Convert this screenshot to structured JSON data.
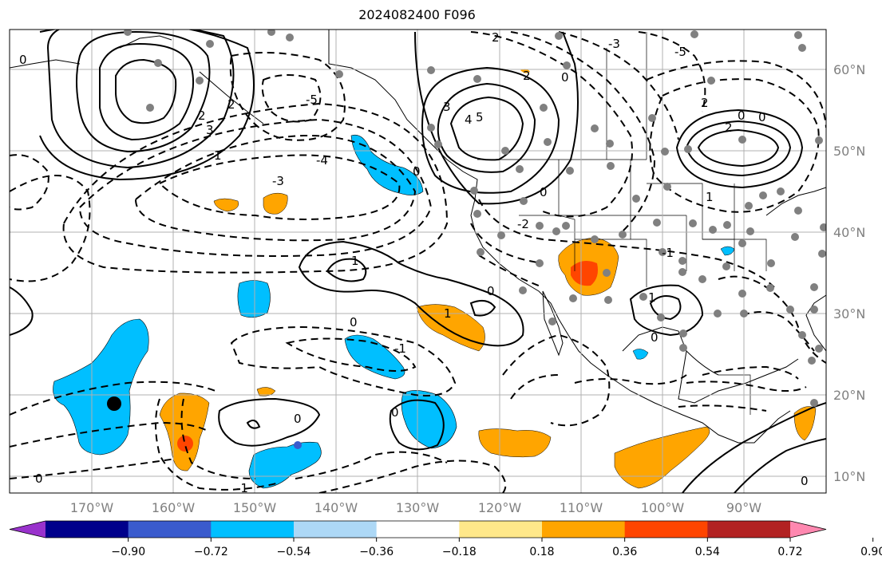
{
  "title": "2024082400 F096",
  "colors": {
    "neg_strong": "#00bfff",
    "neg_mid": "#3a5bcd",
    "pos_orange": "#ffa500",
    "pos_red": "#ff4500",
    "grid": "#b0b0b0",
    "station_dot": "#808080"
  },
  "lat_labels": [
    "60°N",
    "50°N",
    "40°N",
    "30°N",
    "20°N",
    "10°N"
  ],
  "lon_labels": [
    "170°W",
    "160°W",
    "150°W",
    "140°W",
    "130°W",
    "120°W",
    "110°W",
    "100°W",
    "90°W"
  ],
  "colorbar": {
    "colors": [
      "#9932cc",
      "#00008b",
      "#3a5bcd",
      "#00bfff",
      "#add8f6",
      "#ffffff",
      "#ffe88a",
      "#ffa500",
      "#ff4500",
      "#b22222",
      "#ff88b0"
    ],
    "tick_labels": [
      "−0.90",
      "−0.72",
      "−0.54",
      "−0.36",
      "−0.18",
      "0.18",
      "0.36",
      "0.54",
      "0.72",
      "0.90"
    ]
  },
  "contour_labels": [
    "0",
    "1",
    "-1",
    "2",
    "-2",
    "3",
    "-3",
    "4",
    "-4",
    "5",
    "-5"
  ]
}
